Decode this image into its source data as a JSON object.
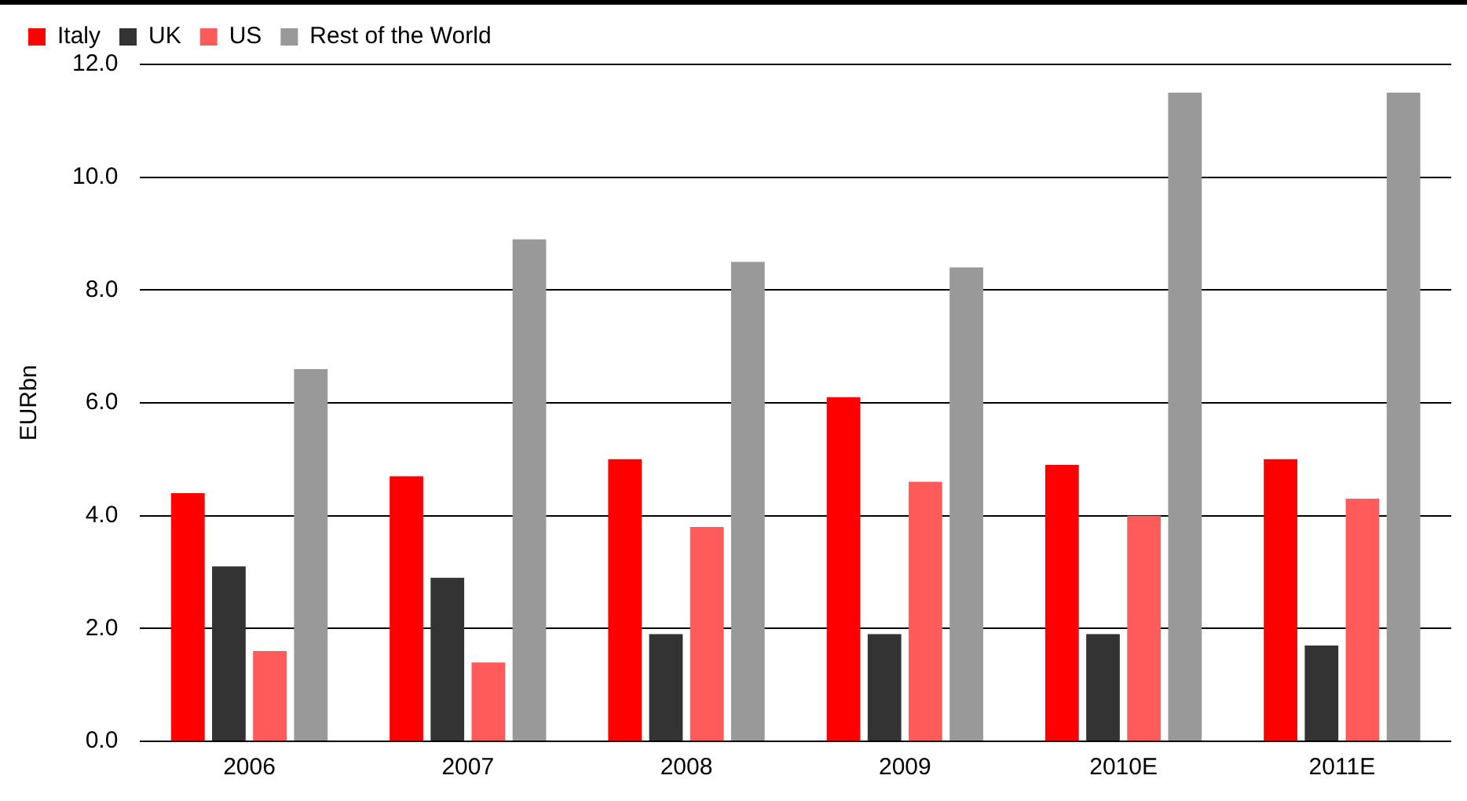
{
  "chart_data": {
    "type": "bar",
    "ylabel": "EURbn",
    "categories": [
      "2006",
      "2007",
      "2008",
      "2009",
      "2010E",
      "2011E"
    ],
    "series": [
      {
        "name": "Italy",
        "color": "#ff0000",
        "values": [
          4.4,
          4.7,
          5.0,
          6.1,
          4.9,
          5.0
        ]
      },
      {
        "name": "UK",
        "color": "#333333",
        "values": [
          3.1,
          2.9,
          1.9,
          1.9,
          1.9,
          1.7
        ]
      },
      {
        "name": "US",
        "color": "#ff5b5b",
        "values": [
          1.6,
          1.4,
          3.8,
          4.6,
          4.0,
          4.3
        ]
      },
      {
        "name": "Rest of the World",
        "color": "#999999",
        "values": [
          6.6,
          8.9,
          8.5,
          8.4,
          11.5,
          11.5
        ]
      }
    ],
    "ylim": [
      0,
      12
    ],
    "yticks": [
      {
        "value": 0,
        "label": "0.0"
      },
      {
        "value": 2,
        "label": "2.0"
      },
      {
        "value": 4,
        "label": "4.0"
      },
      {
        "value": 6,
        "label": "6.0"
      },
      {
        "value": 8,
        "label": "8.0"
      },
      {
        "value": 10,
        "label": "10.0"
      },
      {
        "value": 12,
        "label": "12.0"
      }
    ],
    "grid": "y",
    "legend": "top left"
  }
}
